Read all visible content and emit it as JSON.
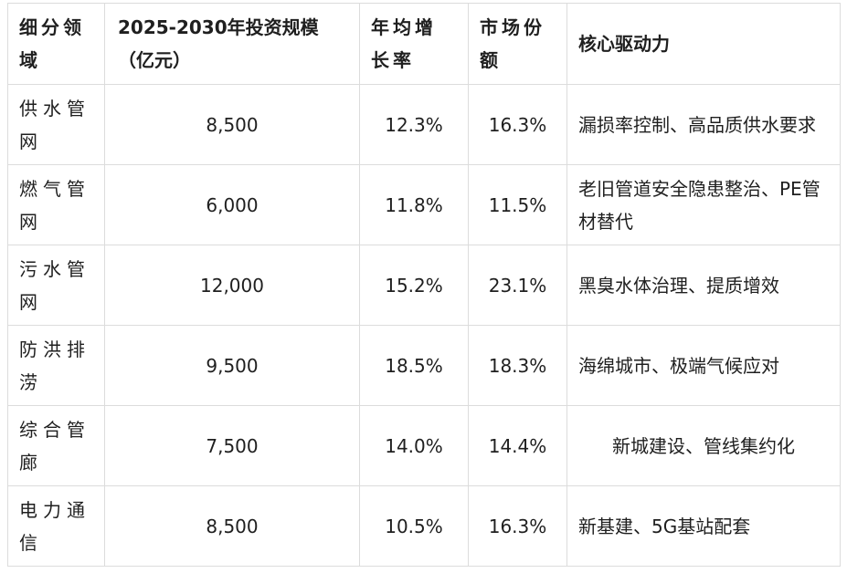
{
  "headers": {
    "segment": "细分领域",
    "investment": "2025-2030年投资规模（亿元）",
    "cagr": "年均增长率",
    "share": "市场份额",
    "driver": "核心驱动力"
  },
  "rows": [
    {
      "segment": " 供水管网",
      "investment": "8,500",
      "cagr": "12.3%",
      "share": "16.3%",
      "driver": "漏损率控制、高品质供水要求"
    },
    {
      "segment": "燃气管网",
      "investment": "6,000",
      "cagr": "11.8%",
      "share": "11.5%",
      "driver": "老旧管道安全隐患整治、PE管材替代"
    },
    {
      "segment": "污水管网",
      "investment": "12,000",
      "cagr": "15.2%",
      "share": "23.1%",
      "driver": "黑臭水体治理、提质增效"
    },
    {
      "segment": "防洪排涝",
      "investment": "9,500",
      "cagr": "18.5%",
      "share": "18.3%",
      "driver": "海绵城市、极端气候应对"
    },
    {
      "segment": "综合管廊",
      "investment": "7,500",
      "cagr": "14.0%",
      "share": "14.4%",
      "driver": "新城建设、管线集约化"
    },
    {
      "segment": "电力通信",
      "investment": "8,500",
      "cagr": "10.5%",
      "share": "16.3%",
      "driver": "新基建、5G基站配套"
    }
  ]
}
